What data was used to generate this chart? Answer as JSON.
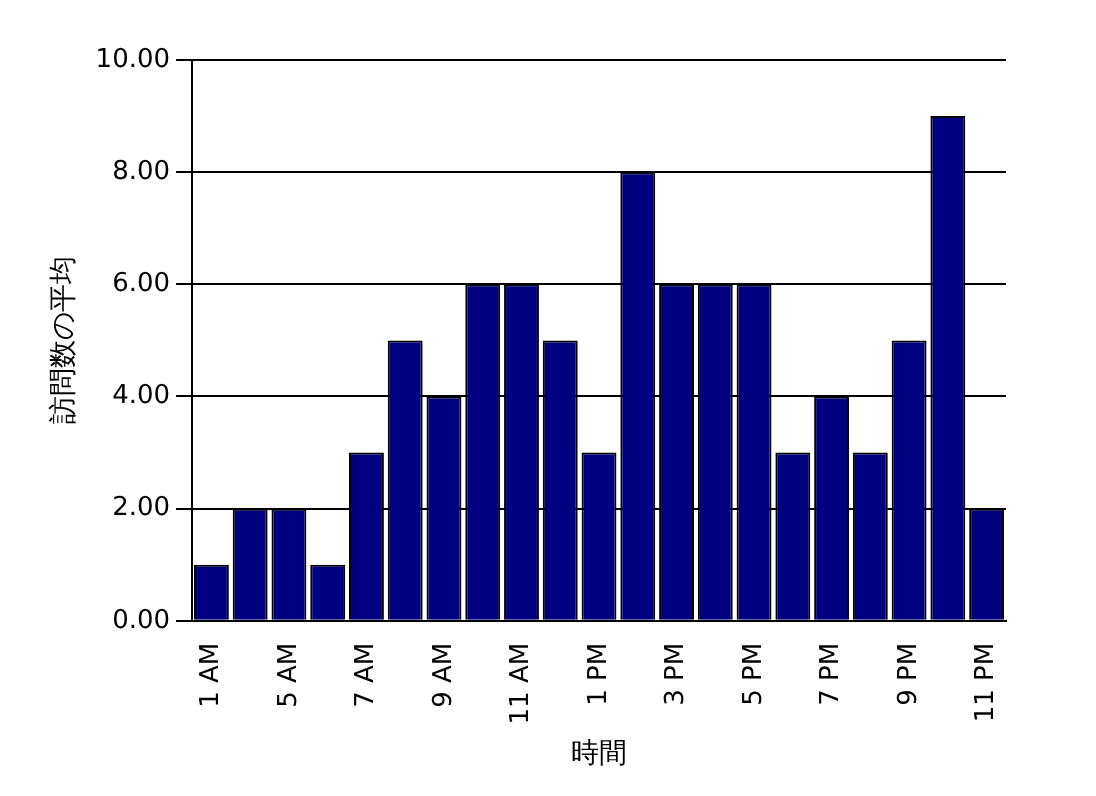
{
  "chart_data": {
    "type": "bar",
    "xlabel": "時間",
    "ylabel": "訪問数の平均",
    "categories": [
      "1 AM",
      null,
      "5 AM",
      null,
      "7 AM",
      null,
      "9 AM",
      null,
      "11 AM",
      null,
      "1 PM",
      null,
      "3 PM",
      null,
      "5 PM",
      null,
      "7 PM",
      null,
      "9 PM",
      null,
      "11 PM"
    ],
    "values": [
      1,
      2,
      2,
      1,
      3,
      5,
      4,
      6,
      6,
      5,
      3,
      8,
      6,
      6,
      6,
      3,
      4,
      3,
      5,
      9,
      2
    ],
    "color": "#000080",
    "ylim": [
      0,
      10
    ],
    "yticks": [
      {
        "value": 0,
        "label": "0.00"
      },
      {
        "value": 2,
        "label": "2.00"
      },
      {
        "value": 4,
        "label": "4.00"
      },
      {
        "value": 6,
        "label": "6.00"
      },
      {
        "value": 8,
        "label": "8.00"
      },
      {
        "value": 10,
        "label": "10.00"
      }
    ],
    "grid": "y"
  }
}
